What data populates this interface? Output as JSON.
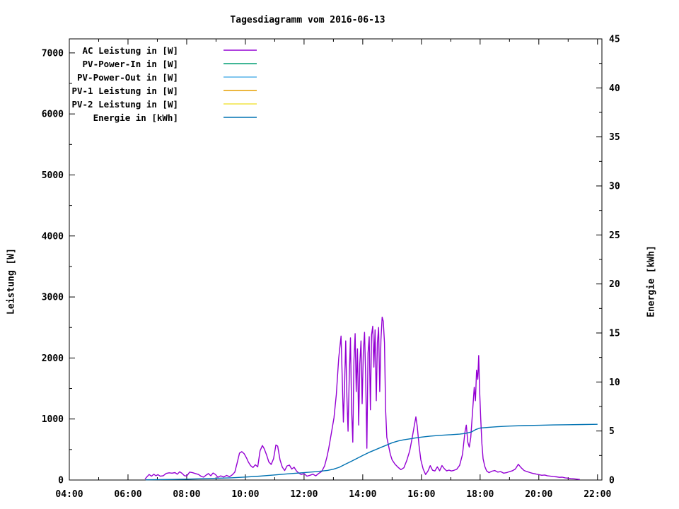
{
  "title": "Tagesdiagramm vom 2016-06-13",
  "axes": {
    "x": {
      "min_hour": 4,
      "max_hour": 22.15,
      "major_step_hours": 2,
      "minor_step_hours": 1,
      "tick_labels": [
        "04:00",
        "06:00",
        "08:00",
        "10:00",
        "12:00",
        "14:00",
        "16:00",
        "18:00",
        "20:00",
        "22:00"
      ]
    },
    "y_left": {
      "label": "Leistung [W]",
      "min": 0,
      "max": 7230,
      "major_step": 1000,
      "minor_step": 500,
      "tick_labels": [
        "0",
        "1000",
        "2000",
        "3000",
        "4000",
        "5000",
        "6000",
        "7000"
      ]
    },
    "y_right": {
      "label": "Energie [kWh]",
      "min": 0,
      "max": 45,
      "major_step": 5,
      "minor_step": 2.5,
      "tick_labels": [
        "0",
        "5",
        "10",
        "15",
        "20",
        "25",
        "30",
        "35",
        "40",
        "45"
      ]
    }
  },
  "legend": [
    {
      "label": "AC Leistung in [W]",
      "color": "#9400d3"
    },
    {
      "label": "PV-Power-In in [W]",
      "color": "#009e73"
    },
    {
      "label": "PV-Power-Out in [W]",
      "color": "#56b4e9"
    },
    {
      "label": "PV-1 Leistung in [W]",
      "color": "#e69f00"
    },
    {
      "label": "PV-2 Leistung in [W]",
      "color": "#f0e442"
    },
    {
      "label": "Energie in [kWh]",
      "color": "#0072b2"
    }
  ],
  "chart_data": {
    "type": "line",
    "title": "Tagesdiagramm vom 2016-06-13",
    "xlabel": "",
    "ylabel_left": "Leistung [W]",
    "ylabel_right": "Energie [kWh]",
    "x_range_hours": [
      4,
      22.15
    ],
    "ylim_left": [
      0,
      7230
    ],
    "ylim_right": [
      0,
      45
    ],
    "grid": false,
    "legend_position": "top-left-inside",
    "series": [
      {
        "name": "AC Leistung in [W]",
        "axis": "left",
        "color": "#9400d3",
        "points": [
          [
            6.58,
            15
          ],
          [
            6.65,
            55
          ],
          [
            6.72,
            90
          ],
          [
            6.8,
            62
          ],
          [
            6.88,
            95
          ],
          [
            6.95,
            70
          ],
          [
            7.02,
            88
          ],
          [
            7.1,
            62
          ],
          [
            7.2,
            70
          ],
          [
            7.3,
            108
          ],
          [
            7.4,
            118
          ],
          [
            7.5,
            112
          ],
          [
            7.6,
            122
          ],
          [
            7.68,
            95
          ],
          [
            7.76,
            135
          ],
          [
            7.84,
            110
          ],
          [
            7.92,
            72
          ],
          [
            8.0,
            65
          ],
          [
            8.1,
            130
          ],
          [
            8.2,
            120
          ],
          [
            8.3,
            106
          ],
          [
            8.4,
            92
          ],
          [
            8.5,
            58
          ],
          [
            8.58,
            48
          ],
          [
            8.66,
            80
          ],
          [
            8.74,
            105
          ],
          [
            8.82,
            70
          ],
          [
            8.9,
            115
          ],
          [
            8.98,
            90
          ],
          [
            9.06,
            45
          ],
          [
            9.16,
            68
          ],
          [
            9.26,
            50
          ],
          [
            9.36,
            75
          ],
          [
            9.46,
            55
          ],
          [
            9.56,
            88
          ],
          [
            9.64,
            130
          ],
          [
            9.72,
            280
          ],
          [
            9.8,
            440
          ],
          [
            9.88,
            465
          ],
          [
            9.96,
            430
          ],
          [
            10.04,
            360
          ],
          [
            10.1,
            295
          ],
          [
            10.18,
            235
          ],
          [
            10.26,
            205
          ],
          [
            10.34,
            250
          ],
          [
            10.42,
            215
          ],
          [
            10.5,
            480
          ],
          [
            10.58,
            565
          ],
          [
            10.64,
            515
          ],
          [
            10.72,
            415
          ],
          [
            10.8,
            295
          ],
          [
            10.88,
            255
          ],
          [
            10.96,
            350
          ],
          [
            11.04,
            575
          ],
          [
            11.1,
            555
          ],
          [
            11.18,
            330
          ],
          [
            11.26,
            210
          ],
          [
            11.34,
            155
          ],
          [
            11.42,
            230
          ],
          [
            11.5,
            245
          ],
          [
            11.58,
            180
          ],
          [
            11.66,
            210
          ],
          [
            11.74,
            150
          ],
          [
            11.82,
            115
          ],
          [
            11.9,
            90
          ],
          [
            12.0,
            105
          ],
          [
            12.1,
            62
          ],
          [
            12.2,
            78
          ],
          [
            12.3,
            95
          ],
          [
            12.4,
            68
          ],
          [
            12.5,
            108
          ],
          [
            12.6,
            140
          ],
          [
            12.7,
            230
          ],
          [
            12.78,
            380
          ],
          [
            12.84,
            520
          ],
          [
            12.9,
            680
          ],
          [
            12.96,
            850
          ],
          [
            13.02,
            1020
          ],
          [
            13.1,
            1400
          ],
          [
            13.18,
            2000
          ],
          [
            13.26,
            2360
          ],
          [
            13.3,
            1700
          ],
          [
            13.34,
            950
          ],
          [
            13.38,
            1550
          ],
          [
            13.42,
            2280
          ],
          [
            13.46,
            1350
          ],
          [
            13.5,
            800
          ],
          [
            13.54,
            1700
          ],
          [
            13.58,
            2330
          ],
          [
            13.62,
            1150
          ],
          [
            13.66,
            620
          ],
          [
            13.7,
            1950
          ],
          [
            13.74,
            2400
          ],
          [
            13.78,
            1450
          ],
          [
            13.82,
            2150
          ],
          [
            13.86,
            900
          ],
          [
            13.9,
            1900
          ],
          [
            13.94,
            2280
          ],
          [
            13.98,
            1250
          ],
          [
            14.02,
            2100
          ],
          [
            14.06,
            2420
          ],
          [
            14.1,
            1700
          ],
          [
            14.14,
            520
          ],
          [
            14.18,
            2080
          ],
          [
            14.22,
            2350
          ],
          [
            14.26,
            1150
          ],
          [
            14.3,
            2380
          ],
          [
            14.34,
            2520
          ],
          [
            14.38,
            1850
          ],
          [
            14.42,
            2460
          ],
          [
            14.46,
            1300
          ],
          [
            14.5,
            2250
          ],
          [
            14.54,
            2500
          ],
          [
            14.58,
            1450
          ],
          [
            14.62,
            2300
          ],
          [
            14.66,
            2670
          ],
          [
            14.7,
            2600
          ],
          [
            14.74,
            2250
          ],
          [
            14.78,
            1150
          ],
          [
            14.82,
            700
          ],
          [
            14.88,
            560
          ],
          [
            14.94,
            420
          ],
          [
            15.0,
            330
          ],
          [
            15.1,
            260
          ],
          [
            15.2,
            210
          ],
          [
            15.3,
            170
          ],
          [
            15.4,
            200
          ],
          [
            15.5,
            320
          ],
          [
            15.6,
            480
          ],
          [
            15.68,
            680
          ],
          [
            15.76,
            900
          ],
          [
            15.81,
            1035
          ],
          [
            15.86,
            870
          ],
          [
            15.92,
            560
          ],
          [
            15.98,
            330
          ],
          [
            16.06,
            180
          ],
          [
            16.14,
            90
          ],
          [
            16.22,
            145
          ],
          [
            16.3,
            235
          ],
          [
            16.38,
            160
          ],
          [
            16.46,
            148
          ],
          [
            16.54,
            215
          ],
          [
            16.62,
            152
          ],
          [
            16.7,
            238
          ],
          [
            16.78,
            185
          ],
          [
            16.86,
            150
          ],
          [
            16.94,
            162
          ],
          [
            17.02,
            148
          ],
          [
            17.1,
            158
          ],
          [
            17.2,
            175
          ],
          [
            17.3,
            240
          ],
          [
            17.4,
            420
          ],
          [
            17.48,
            780
          ],
          [
            17.53,
            900
          ],
          [
            17.58,
            620
          ],
          [
            17.63,
            540
          ],
          [
            17.68,
            700
          ],
          [
            17.74,
            1100
          ],
          [
            17.8,
            1520
          ],
          [
            17.84,
            1300
          ],
          [
            17.88,
            1800
          ],
          [
            17.92,
            1650
          ],
          [
            17.95,
            2040
          ],
          [
            17.98,
            1500
          ],
          [
            18.02,
            1000
          ],
          [
            18.06,
            600
          ],
          [
            18.1,
            350
          ],
          [
            18.16,
            220
          ],
          [
            18.22,
            150
          ],
          [
            18.3,
            120
          ],
          [
            18.4,
            145
          ],
          [
            18.5,
            155
          ],
          [
            18.6,
            130
          ],
          [
            18.7,
            138
          ],
          [
            18.8,
            112
          ],
          [
            18.9,
            120
          ],
          [
            19.0,
            138
          ],
          [
            19.1,
            152
          ],
          [
            19.2,
            180
          ],
          [
            19.3,
            258
          ],
          [
            19.4,
            200
          ],
          [
            19.5,
            155
          ],
          [
            19.6,
            138
          ],
          [
            19.7,
            122
          ],
          [
            19.8,
            108
          ],
          [
            19.9,
            98
          ],
          [
            20.0,
            88
          ],
          [
            20.1,
            78
          ],
          [
            20.2,
            82
          ],
          [
            20.3,
            68
          ],
          [
            20.4,
            62
          ],
          [
            20.5,
            56
          ],
          [
            20.6,
            52
          ],
          [
            20.7,
            44
          ],
          [
            20.8,
            46
          ],
          [
            20.9,
            36
          ],
          [
            21.0,
            30
          ],
          [
            21.1,
            24
          ],
          [
            21.2,
            20
          ],
          [
            21.3,
            14
          ],
          [
            21.4,
            8
          ]
        ]
      },
      {
        "name": "PV-Power-In in [W]",
        "axis": "left",
        "color": "#009e73",
        "points": []
      },
      {
        "name": "PV-Power-Out in [W]",
        "axis": "left",
        "color": "#56b4e9",
        "points": []
      },
      {
        "name": "PV-1 Leistung in [W]",
        "axis": "left",
        "color": "#e69f00",
        "points": []
      },
      {
        "name": "PV-2 Leistung in [W]",
        "axis": "left",
        "color": "#f0e442",
        "points": []
      },
      {
        "name": "Energie in [kWh]",
        "axis": "right",
        "color": "#0072b2",
        "points": [
          [
            6.6,
            0.02
          ],
          [
            7.0,
            0.04
          ],
          [
            7.5,
            0.06
          ],
          [
            8.0,
            0.09
          ],
          [
            8.5,
            0.13
          ],
          [
            9.0,
            0.17
          ],
          [
            9.5,
            0.22
          ],
          [
            10.0,
            0.3
          ],
          [
            10.5,
            0.4
          ],
          [
            11.0,
            0.52
          ],
          [
            11.5,
            0.64
          ],
          [
            12.0,
            0.75
          ],
          [
            12.4,
            0.85
          ],
          [
            12.8,
            0.98
          ],
          [
            13.0,
            1.1
          ],
          [
            13.2,
            1.3
          ],
          [
            13.4,
            1.6
          ],
          [
            13.6,
            1.9
          ],
          [
            13.8,
            2.2
          ],
          [
            14.0,
            2.5
          ],
          [
            14.2,
            2.8
          ],
          [
            14.4,
            3.05
          ],
          [
            14.6,
            3.3
          ],
          [
            14.8,
            3.55
          ],
          [
            15.0,
            3.8
          ],
          [
            15.2,
            3.98
          ],
          [
            15.4,
            4.1
          ],
          [
            15.6,
            4.2
          ],
          [
            15.8,
            4.3
          ],
          [
            16.0,
            4.38
          ],
          [
            16.3,
            4.48
          ],
          [
            16.6,
            4.55
          ],
          [
            17.0,
            4.62
          ],
          [
            17.3,
            4.68
          ],
          [
            17.5,
            4.75
          ],
          [
            17.7,
            4.9
          ],
          [
            17.85,
            5.15
          ],
          [
            18.0,
            5.3
          ],
          [
            18.3,
            5.38
          ],
          [
            18.6,
            5.44
          ],
          [
            19.0,
            5.5
          ],
          [
            19.5,
            5.55
          ],
          [
            20.0,
            5.58
          ],
          [
            20.5,
            5.62
          ],
          [
            21.0,
            5.64
          ],
          [
            21.5,
            5.66
          ],
          [
            22.0,
            5.68
          ]
        ]
      }
    ]
  }
}
